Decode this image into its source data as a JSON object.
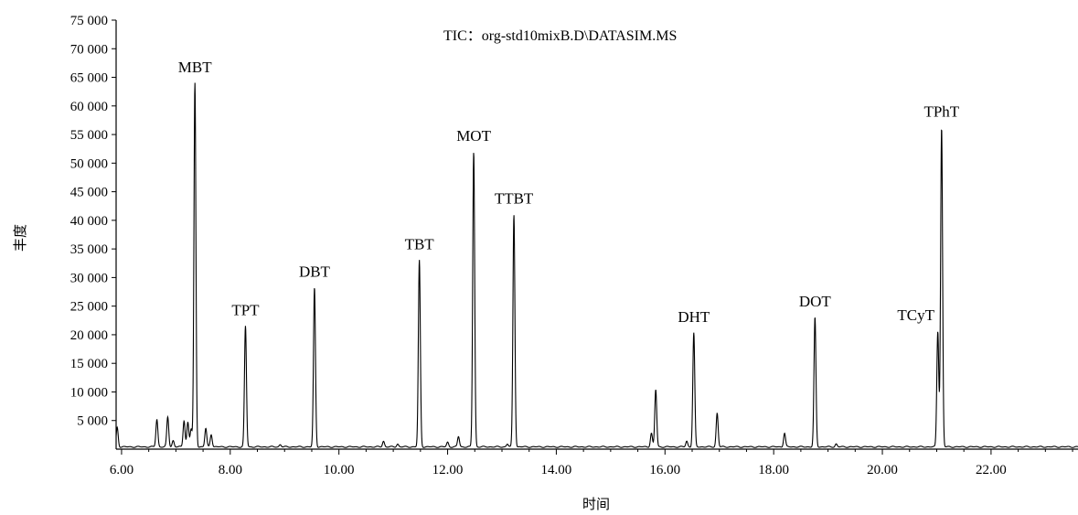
{
  "chart_data": {
    "type": "line",
    "title": "TIC：org-std10mixB.D\\DATASIM.MS",
    "xlabel": "时间",
    "ylabel": "丰度",
    "xlim": [
      5.9,
      23.6
    ],
    "ylim": [
      0,
      75000
    ],
    "x_ticks": [
      "6.00",
      "8.00",
      "10.00",
      "12.00",
      "14.00",
      "16.00",
      "18.00",
      "20.00",
      "22.00"
    ],
    "x_tick_values": [
      6,
      8,
      10,
      12,
      14,
      16,
      18,
      20,
      22
    ],
    "y_ticks": [
      "5 000",
      "10 000",
      "15 000",
      "20 000",
      "25 000",
      "30 000",
      "35 000",
      "40 000",
      "45 000",
      "50 000",
      "55 000",
      "60 000",
      "65 000",
      "70 000",
      "75 000"
    ],
    "y_tick_values": [
      5000,
      10000,
      15000,
      20000,
      25000,
      30000,
      35000,
      40000,
      45000,
      50000,
      55000,
      60000,
      65000,
      70000,
      75000
    ],
    "baseline": 400,
    "peaks": [
      {
        "x": 5.92,
        "y": 3800
      },
      {
        "x": 6.65,
        "y": 5200
      },
      {
        "x": 6.85,
        "y": 5600
      },
      {
        "x": 6.95,
        "y": 1500
      },
      {
        "x": 7.15,
        "y": 5000
      },
      {
        "x": 7.22,
        "y": 4700
      },
      {
        "x": 7.28,
        "y": 3500
      },
      {
        "x": 7.35,
        "y": 64000,
        "name": "MBT"
      },
      {
        "x": 7.55,
        "y": 3600
      },
      {
        "x": 7.65,
        "y": 2600
      },
      {
        "x": 8.28,
        "y": 21500,
        "name": "TPT"
      },
      {
        "x": 8.92,
        "y": 800
      },
      {
        "x": 9.55,
        "y": 28200,
        "name": "DBT"
      },
      {
        "x": 10.82,
        "y": 1400
      },
      {
        "x": 11.08,
        "y": 900
      },
      {
        "x": 11.48,
        "y": 33000,
        "name": "TBT"
      },
      {
        "x": 12.0,
        "y": 1200
      },
      {
        "x": 12.2,
        "y": 2200
      },
      {
        "x": 12.48,
        "y": 52000,
        "name": "MOT"
      },
      {
        "x": 13.1,
        "y": 900
      },
      {
        "x": 13.22,
        "y": 41000,
        "name": "TTBT"
      },
      {
        "x": 15.75,
        "y": 2800
      },
      {
        "x": 15.83,
        "y": 10400
      },
      {
        "x": 16.4,
        "y": 1400
      },
      {
        "x": 16.53,
        "y": 20300,
        "name": "DHT"
      },
      {
        "x": 16.96,
        "y": 6300
      },
      {
        "x": 18.2,
        "y": 2800
      },
      {
        "x": 18.76,
        "y": 23000,
        "name": "DOT"
      },
      {
        "x": 19.15,
        "y": 900
      },
      {
        "x": 21.02,
        "y": 20600,
        "name": "TCyT"
      },
      {
        "x": 21.09,
        "y": 56200,
        "name": "TPhT"
      }
    ]
  }
}
